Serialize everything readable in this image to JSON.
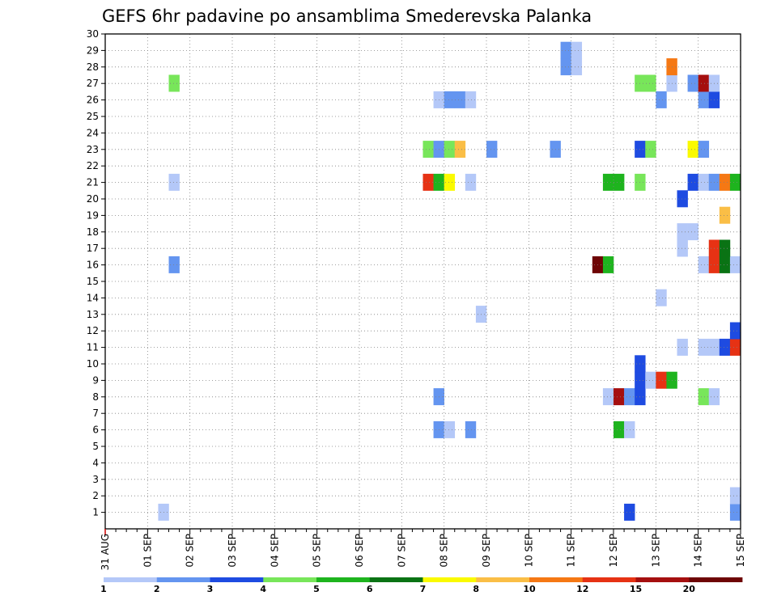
{
  "chart_data": {
    "type": "heatmap",
    "title": "GEFS 6hr padavine po ansamblima Smederevska Palanka",
    "x_tick_labels": [
      "31 AUG",
      "01 SEP",
      "02 SEP",
      "03 SEP",
      "04 SEP",
      "05 SEP",
      "06 SEP",
      "07 SEP",
      "08 SEP",
      "09 SEP",
      "10 SEP",
      "11 SEP",
      "12 SEP",
      "13 SEP",
      "14 SEP",
      "15 SEP"
    ],
    "x_range_days": [
      0,
      15
    ],
    "y_range": [
      0,
      30
    ],
    "y_ticks": [
      1,
      2,
      3,
      4,
      5,
      6,
      7,
      8,
      9,
      10,
      11,
      12,
      13,
      14,
      15,
      16,
      17,
      18,
      19,
      20,
      21,
      22,
      23,
      24,
      25,
      26,
      27,
      28,
      29,
      30
    ],
    "grid": true,
    "colorbar": {
      "labels": [
        "1",
        "2",
        "3",
        "4",
        "5",
        "6",
        "7",
        "8",
        "10",
        "12",
        "15",
        "20"
      ],
      "colors": [
        "#b4c8f8",
        "#6495f0",
        "#1e4be1",
        "#78e65a",
        "#1eb41e",
        "#0a7314",
        "#fafa00",
        "#fabe46",
        "#f57814",
        "#e63214",
        "#a50f0f",
        "#6e0505"
      ]
    },
    "cells": [
      {
        "m": 1,
        "d": 12.25,
        "c": 2
      },
      {
        "m": 1,
        "d": 14.75,
        "c": 1
      },
      {
        "m": 1,
        "d": 1.25,
        "c": 0
      },
      {
        "m": 2,
        "d": 14.75,
        "c": 0
      },
      {
        "m": 6,
        "d": 7.75,
        "c": 1
      },
      {
        "m": 6,
        "d": 8.0,
        "c": 0
      },
      {
        "m": 6,
        "d": 8.5,
        "c": 1
      },
      {
        "m": 6,
        "d": 12.0,
        "c": 4
      },
      {
        "m": 6,
        "d": 12.25,
        "c": 0
      },
      {
        "m": 8,
        "d": 7.75,
        "c": 1
      },
      {
        "m": 8,
        "d": 11.75,
        "c": 0
      },
      {
        "m": 8,
        "d": 12.0,
        "c": 10
      },
      {
        "m": 8,
        "d": 12.25,
        "c": 1
      },
      {
        "m": 8,
        "d": 12.5,
        "c": 2
      },
      {
        "m": 8,
        "d": 14.0,
        "c": 3
      },
      {
        "m": 8,
        "d": 14.25,
        "c": 0
      },
      {
        "m": 9,
        "d": 12.5,
        "c": 2
      },
      {
        "m": 9,
        "d": 12.75,
        "c": 0
      },
      {
        "m": 9,
        "d": 13.0,
        "c": 9
      },
      {
        "m": 9,
        "d": 13.25,
        "c": 4
      },
      {
        "m": 10,
        "d": 12.5,
        "c": 2
      },
      {
        "m": 11,
        "d": 13.5,
        "c": 0
      },
      {
        "m": 11,
        "d": 14.0,
        "c": 0
      },
      {
        "m": 11,
        "d": 14.25,
        "c": 0
      },
      {
        "m": 11,
        "d": 14.5,
        "c": 2
      },
      {
        "m": 11,
        "d": 14.75,
        "c": 9
      },
      {
        "m": 12,
        "d": 14.75,
        "c": 2
      },
      {
        "m": 13,
        "d": 8.75,
        "c": 0
      },
      {
        "m": 14,
        "d": 13.0,
        "c": 0
      },
      {
        "m": 16,
        "d": 1.5,
        "c": 1
      },
      {
        "m": 16,
        "d": 11.5,
        "c": 11
      },
      {
        "m": 16,
        "d": 11.75,
        "c": 4
      },
      {
        "m": 16,
        "d": 14.0,
        "c": 0
      },
      {
        "m": 16,
        "d": 14.25,
        "c": 9
      },
      {
        "m": 16,
        "d": 14.5,
        "c": 5
      },
      {
        "m": 16,
        "d": 14.75,
        "c": 0
      },
      {
        "m": 17,
        "d": 14.25,
        "c": 9
      },
      {
        "m": 17,
        "d": 14.5,
        "c": 5
      },
      {
        "m": 17,
        "d": 13.5,
        "c": 0
      },
      {
        "m": 18,
        "d": 13.5,
        "c": 0
      },
      {
        "m": 18,
        "d": 13.75,
        "c": 0
      },
      {
        "m": 19,
        "d": 14.5,
        "c": 7
      },
      {
        "m": 20,
        "d": 13.5,
        "c": 2
      },
      {
        "m": 21,
        "d": 1.5,
        "c": 0
      },
      {
        "m": 21,
        "d": 7.5,
        "c": 9
      },
      {
        "m": 21,
        "d": 7.75,
        "c": 4
      },
      {
        "m": 21,
        "d": 8.0,
        "c": 6
      },
      {
        "m": 21,
        "d": 8.5,
        "c": 0
      },
      {
        "m": 21,
        "d": 11.75,
        "c": 4
      },
      {
        "m": 21,
        "d": 12.0,
        "c": 4
      },
      {
        "m": 21,
        "d": 12.5,
        "c": 3
      },
      {
        "m": 21,
        "d": 13.75,
        "c": 2
      },
      {
        "m": 21,
        "d": 14.0,
        "c": 0
      },
      {
        "m": 21,
        "d": 14.25,
        "c": 1
      },
      {
        "m": 21,
        "d": 14.5,
        "c": 8
      },
      {
        "m": 21,
        "d": 14.75,
        "c": 4
      },
      {
        "m": 23,
        "d": 7.5,
        "c": 3
      },
      {
        "m": 23,
        "d": 7.75,
        "c": 1
      },
      {
        "m": 23,
        "d": 8.0,
        "c": 3
      },
      {
        "m": 23,
        "d": 8.25,
        "c": 7
      },
      {
        "m": 23,
        "d": 9.0,
        "c": 1
      },
      {
        "m": 23,
        "d": 10.5,
        "c": 1
      },
      {
        "m": 23,
        "d": 12.5,
        "c": 2
      },
      {
        "m": 23,
        "d": 12.75,
        "c": 3
      },
      {
        "m": 23,
        "d": 13.75,
        "c": 6
      },
      {
        "m": 23,
        "d": 14.0,
        "c": 1
      },
      {
        "m": 26,
        "d": 7.75,
        "c": 0
      },
      {
        "m": 26,
        "d": 8.0,
        "c": 1
      },
      {
        "m": 26,
        "d": 8.25,
        "c": 1
      },
      {
        "m": 26,
        "d": 8.5,
        "c": 0
      },
      {
        "m": 26,
        "d": 13.0,
        "c": 1
      },
      {
        "m": 26,
        "d": 14.0,
        "c": 1
      },
      {
        "m": 26,
        "d": 14.25,
        "c": 2
      },
      {
        "m": 27,
        "d": 1.5,
        "c": 3
      },
      {
        "m": 27,
        "d": 12.5,
        "c": 3
      },
      {
        "m": 27,
        "d": 12.75,
        "c": 3
      },
      {
        "m": 27,
        "d": 13.25,
        "c": 0
      },
      {
        "m": 27,
        "d": 13.75,
        "c": 1
      },
      {
        "m": 27,
        "d": 14.0,
        "c": 10
      },
      {
        "m": 27,
        "d": 14.25,
        "c": 0
      },
      {
        "m": 28,
        "d": 10.75,
        "c": 1
      },
      {
        "m": 28,
        "d": 11.0,
        "c": 0
      },
      {
        "m": 28,
        "d": 13.25,
        "c": 8
      },
      {
        "m": 29,
        "d": 10.75,
        "c": 1
      },
      {
        "m": 29,
        "d": 11.0,
        "c": 0
      }
    ]
  }
}
